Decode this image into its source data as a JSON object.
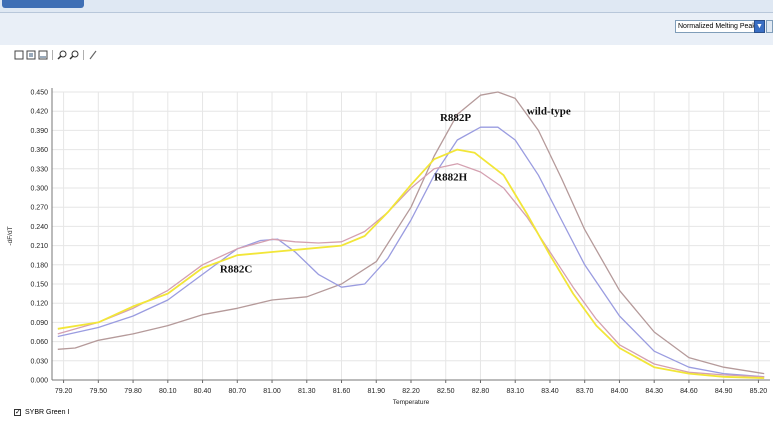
{
  "window": {
    "tab_label": ""
  },
  "toolbar": {
    "view_select_value": "Normalized Melting Peaks",
    "tools": [
      "new-icon",
      "copy-icon",
      "paste-icon",
      "zoom-in-icon",
      "zoom-out-icon",
      "pencil-icon"
    ]
  },
  "legend": {
    "checked": true,
    "label": "SYBR Green I"
  },
  "chart_data": {
    "type": "line",
    "title": "",
    "xlabel": "Temperature",
    "ylabel": "-dF/dT",
    "xlim": [
      79.1,
      85.3
    ],
    "ylim": [
      0.0,
      0.45
    ],
    "x_ticks": [
      "79.20",
      "79.50",
      "79.80",
      "80.10",
      "80.40",
      "80.70",
      "81.00",
      "81.30",
      "81.60",
      "81.90",
      "82.20",
      "82.50",
      "82.80",
      "83.10",
      "83.40",
      "83.70",
      "84.00",
      "84.30",
      "84.60",
      "84.90",
      "85.20"
    ],
    "y_ticks": [
      "0.000",
      "0.030",
      "0.060",
      "0.090",
      "0.120",
      "0.150",
      "0.180",
      "0.210",
      "0.240",
      "0.270",
      "0.300",
      "0.330",
      "0.360",
      "0.390",
      "0.420",
      "0.450"
    ],
    "grid": true,
    "series": [
      {
        "name": "wild-type",
        "color": "#b59a9a",
        "points": [
          [
            79.15,
            0.048
          ],
          [
            79.3,
            0.05
          ],
          [
            79.5,
            0.062
          ],
          [
            79.8,
            0.072
          ],
          [
            80.1,
            0.085
          ],
          [
            80.4,
            0.102
          ],
          [
            80.7,
            0.112
          ],
          [
            81.0,
            0.125
          ],
          [
            81.3,
            0.13
          ],
          [
            81.6,
            0.15
          ],
          [
            81.9,
            0.185
          ],
          [
            82.2,
            0.27
          ],
          [
            82.4,
            0.35
          ],
          [
            82.6,
            0.415
          ],
          [
            82.8,
            0.445
          ],
          [
            82.95,
            0.45
          ],
          [
            83.1,
            0.44
          ],
          [
            83.3,
            0.39
          ],
          [
            83.5,
            0.315
          ],
          [
            83.7,
            0.235
          ],
          [
            84.0,
            0.14
          ],
          [
            84.3,
            0.075
          ],
          [
            84.6,
            0.035
          ],
          [
            84.9,
            0.02
          ],
          [
            85.25,
            0.01
          ]
        ]
      },
      {
        "name": "R882P",
        "color": "#9a9ce0",
        "points": [
          [
            79.15,
            0.068
          ],
          [
            79.5,
            0.082
          ],
          [
            79.8,
            0.1
          ],
          [
            80.1,
            0.125
          ],
          [
            80.4,
            0.165
          ],
          [
            80.7,
            0.205
          ],
          [
            80.9,
            0.218
          ],
          [
            81.05,
            0.22
          ],
          [
            81.2,
            0.2
          ],
          [
            81.4,
            0.165
          ],
          [
            81.6,
            0.145
          ],
          [
            81.8,
            0.15
          ],
          [
            82.0,
            0.19
          ],
          [
            82.2,
            0.25
          ],
          [
            82.4,
            0.32
          ],
          [
            82.6,
            0.375
          ],
          [
            82.8,
            0.395
          ],
          [
            82.95,
            0.395
          ],
          [
            83.1,
            0.375
          ],
          [
            83.3,
            0.32
          ],
          [
            83.5,
            0.25
          ],
          [
            83.7,
            0.18
          ],
          [
            84.0,
            0.1
          ],
          [
            84.3,
            0.045
          ],
          [
            84.6,
            0.02
          ],
          [
            84.9,
            0.01
          ],
          [
            85.25,
            0.005
          ]
        ]
      },
      {
        "name": "R882H",
        "color": "#d4a0b0",
        "points": [
          [
            79.15,
            0.072
          ],
          [
            79.5,
            0.09
          ],
          [
            79.8,
            0.112
          ],
          [
            80.1,
            0.14
          ],
          [
            80.4,
            0.18
          ],
          [
            80.7,
            0.205
          ],
          [
            81.0,
            0.22
          ],
          [
            81.2,
            0.216
          ],
          [
            81.4,
            0.214
          ],
          [
            81.6,
            0.216
          ],
          [
            81.8,
            0.232
          ],
          [
            82.0,
            0.262
          ],
          [
            82.2,
            0.3
          ],
          [
            82.4,
            0.33
          ],
          [
            82.6,
            0.338
          ],
          [
            82.8,
            0.325
          ],
          [
            83.0,
            0.3
          ],
          [
            83.2,
            0.255
          ],
          [
            83.4,
            0.2
          ],
          [
            83.6,
            0.145
          ],
          [
            83.8,
            0.095
          ],
          [
            84.0,
            0.055
          ],
          [
            84.3,
            0.025
          ],
          [
            84.6,
            0.012
          ],
          [
            84.9,
            0.008
          ],
          [
            85.25,
            0.005
          ]
        ]
      },
      {
        "name": "R882C",
        "color": "#f2e638",
        "points": [
          [
            79.15,
            0.08
          ],
          [
            79.5,
            0.09
          ],
          [
            79.8,
            0.115
          ],
          [
            80.1,
            0.135
          ],
          [
            80.4,
            0.175
          ],
          [
            80.7,
            0.195
          ],
          [
            81.0,
            0.2
          ],
          [
            81.3,
            0.205
          ],
          [
            81.6,
            0.21
          ],
          [
            81.8,
            0.225
          ],
          [
            82.0,
            0.262
          ],
          [
            82.2,
            0.305
          ],
          [
            82.4,
            0.345
          ],
          [
            82.6,
            0.36
          ],
          [
            82.75,
            0.355
          ],
          [
            83.0,
            0.32
          ],
          [
            83.2,
            0.26
          ],
          [
            83.4,
            0.195
          ],
          [
            83.6,
            0.135
          ],
          [
            83.8,
            0.085
          ],
          [
            84.0,
            0.05
          ],
          [
            84.3,
            0.02
          ],
          [
            84.6,
            0.01
          ],
          [
            84.9,
            0.005
          ],
          [
            85.25,
            0.003
          ]
        ]
      }
    ],
    "annotations": [
      {
        "text": "wild-type",
        "x": 83.2,
        "y": 0.415
      },
      {
        "text": "R882P",
        "x": 82.45,
        "y": 0.405
      },
      {
        "text": "R882H",
        "x": 82.4,
        "y": 0.312
      },
      {
        "text": "R882C",
        "x": 80.55,
        "y": 0.168
      }
    ]
  }
}
